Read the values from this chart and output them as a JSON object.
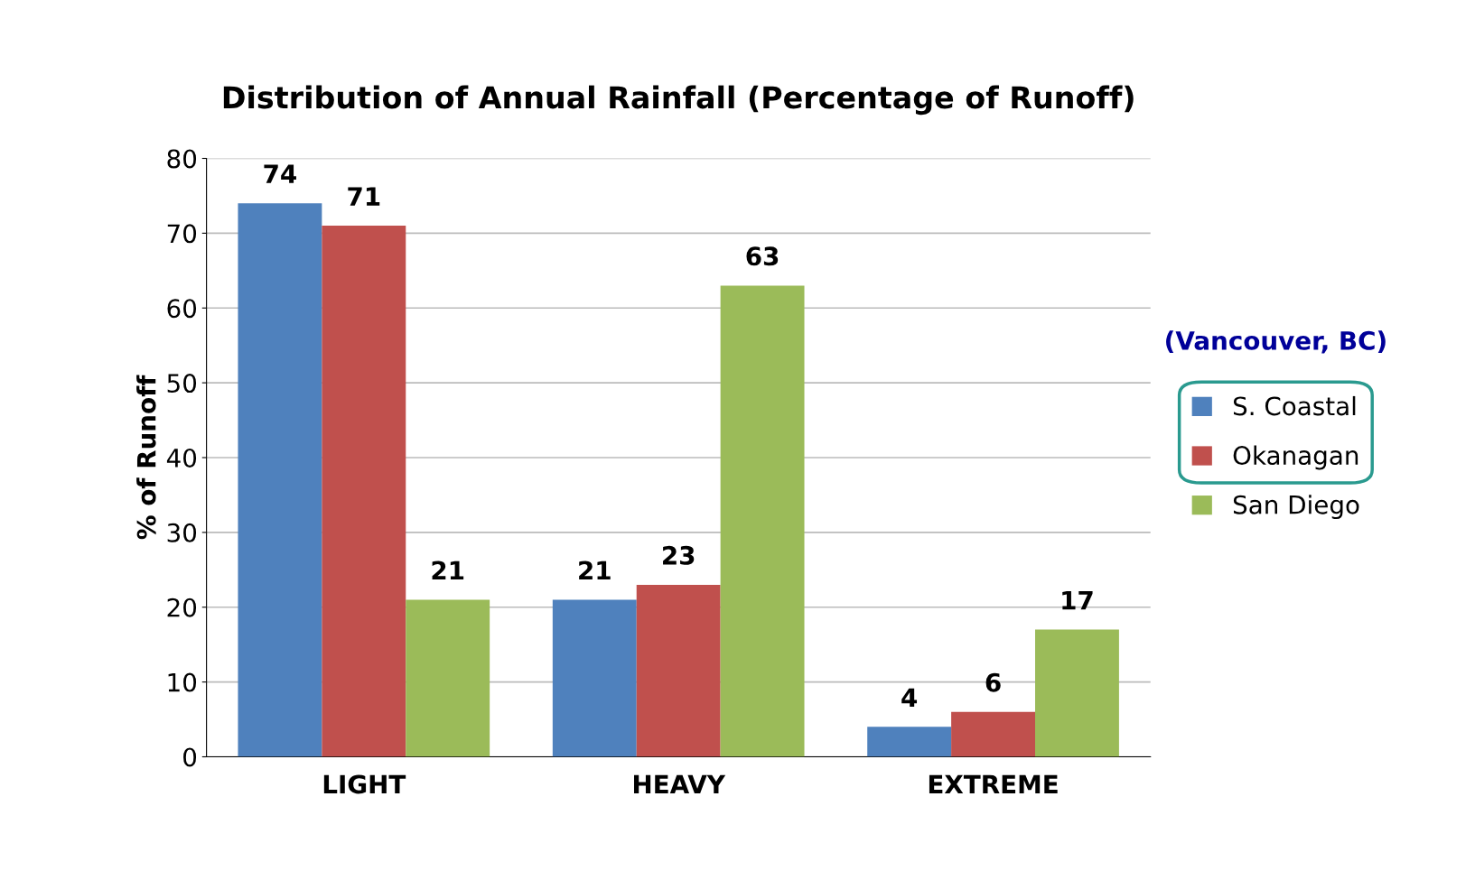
{
  "chart_data": {
    "type": "bar",
    "title": "Distribution of Annual Rainfall (Percentage of Runoff)",
    "ylabel": "% of Runoff",
    "categories": [
      "LIGHT",
      "HEAVY",
      "EXTREME"
    ],
    "series": [
      {
        "name": "S. Coastal",
        "color": "#4f81bd",
        "values": [
          74,
          21,
          4
        ]
      },
      {
        "name": "Okanagan",
        "color": "#c0504d",
        "values": [
          71,
          23,
          6
        ]
      },
      {
        "name": "San Diego",
        "color": "#9bbb59",
        "values": [
          21,
          63,
          17
        ]
      }
    ],
    "ylim": [
      0,
      80
    ],
    "yticks": [
      0,
      10,
      20,
      30,
      40,
      50,
      60,
      70,
      80
    ],
    "grid": "y",
    "legend": "right",
    "data_labels": true,
    "annotations": [
      "(Vancouver, BC)"
    ]
  }
}
